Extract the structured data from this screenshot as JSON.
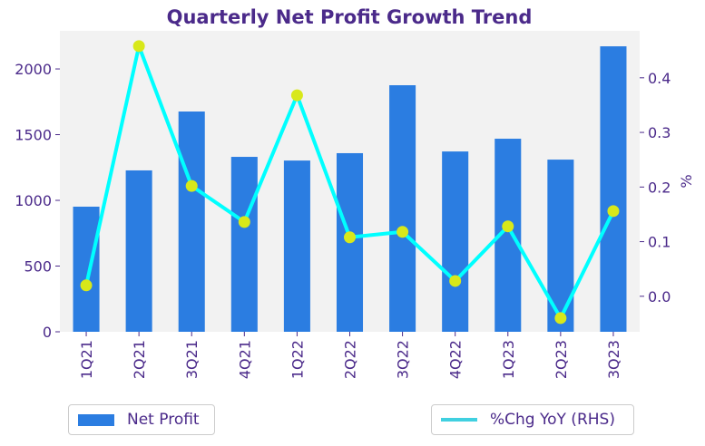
{
  "chart_data": {
    "type": "bar",
    "title": "Quarterly Net Profit Growth Trend",
    "categories": [
      "1Q21",
      "2Q21",
      "3Q21",
      "4Q21",
      "1Q22",
      "2Q22",
      "3Q22",
      "4Q22",
      "1Q23",
      "2Q23",
      "3Q23"
    ],
    "series": [
      {
        "name": "Net Profit",
        "type": "bar",
        "axis": "left",
        "color": "#2b7de1",
        "values": [
          952,
          1228,
          1676,
          1331,
          1303,
          1359,
          1876,
          1372,
          1469,
          1310,
          2172
        ]
      },
      {
        "name": "%Chg YoY (RHS)",
        "type": "line",
        "axis": "right",
        "color": "#00ffff",
        "marker_color": "#d8e81a",
        "values": [
          0.02,
          0.458,
          0.202,
          0.136,
          0.368,
          0.108,
          0.118,
          0.028,
          0.128,
          -0.04,
          0.156
        ]
      }
    ],
    "ylim": [
      0,
      2290
    ],
    "y2lim": [
      -0.065,
      0.486
    ],
    "yticks": [
      0,
      500,
      1000,
      1500,
      2000
    ],
    "y2ticks": [
      "0.0",
      "0.1",
      "0.2",
      "0.3",
      "0.4"
    ],
    "xlabel": "",
    "ylabel": "",
    "y2label": "%",
    "legend": [
      "Net Profit",
      "%Chg YoY (RHS)"
    ],
    "legend_placement": "bottom",
    "grid": false
  }
}
